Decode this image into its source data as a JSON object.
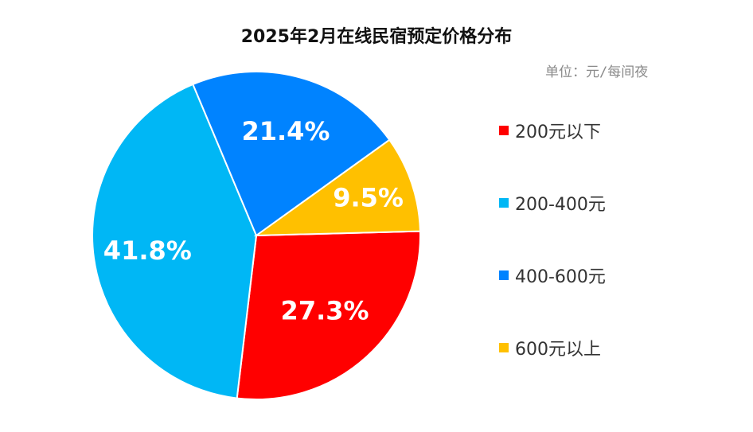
{
  "chart_data": {
    "type": "pie",
    "title": "2025年2月在线民宿预定价格分布",
    "unit_note": "单位：元/每间夜",
    "slices": [
      {
        "label": "200元以下",
        "value": 27.3,
        "display": "27.3%",
        "color": "#ff0000"
      },
      {
        "label": "200-400元",
        "value": 41.8,
        "display": "41.8%",
        "color": "#00b7f5"
      },
      {
        "label": "400-600元",
        "value": 21.4,
        "display": "21.4%",
        "color": "#0083ff"
      },
      {
        "label": "600元以上",
        "value": 9.5,
        "display": "9.5%",
        "color": "#ffc000"
      }
    ],
    "legend_position": "right"
  }
}
